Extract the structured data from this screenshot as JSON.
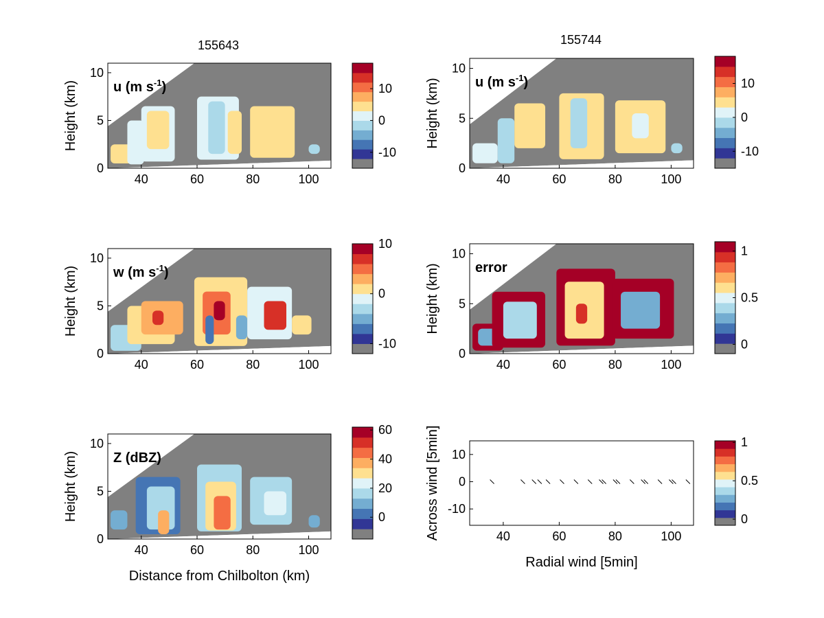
{
  "figure": {
    "left_title": "155643",
    "right_title": "155744"
  },
  "colormap": [
    "#808080",
    "#313695",
    "#4575b4",
    "#74add1",
    "#abd9e9",
    "#e0f3f8",
    "#fee090",
    "#fdae61",
    "#f46d43",
    "#d73027",
    "#a50026"
  ],
  "chart_data": [
    {
      "type": "heatmap",
      "panel": "u-left",
      "field_label": "u (m s",
      "field_sup": "-1",
      "ylabel": "Height (km)",
      "xlabel": "",
      "x_ticks": [
        40,
        60,
        80,
        100
      ],
      "y_ticks": [
        0,
        5,
        10
      ],
      "xlim": [
        28,
        108
      ],
      "ylim": [
        0,
        11
      ],
      "colorbar": {
        "ticks": [
          "10",
          "0",
          "-10"
        ],
        "range": [
          -15,
          18
        ]
      },
      "cells": [
        {
          "x": [
            29,
            38
          ],
          "y": [
            0.5,
            2.5
          ],
          "v": 6
        },
        {
          "x": [
            35,
            41
          ],
          "y": [
            0.4,
            5
          ],
          "v": 5
        },
        {
          "x": [
            40,
            52
          ],
          "y": [
            0.7,
            6.5
          ],
          "v": 5
        },
        {
          "x": [
            42,
            50
          ],
          "y": [
            2,
            6
          ],
          "v": 6
        },
        {
          "x": [
            60,
            75
          ],
          "y": [
            0.9,
            7.5
          ],
          "v": 5
        },
        {
          "x": [
            64,
            70
          ],
          "y": [
            1.5,
            7
          ],
          "v": 4
        },
        {
          "x": [
            71,
            76
          ],
          "y": [
            1.5,
            6
          ],
          "v": 6
        },
        {
          "x": [
            79,
            95
          ],
          "y": [
            1.1,
            6.5
          ],
          "v": 6
        },
        {
          "x": [
            86,
            94
          ],
          "y": [
            3,
            6
          ],
          "v": 6
        },
        {
          "x": [
            100,
            104
          ],
          "y": [
            1.5,
            2.5
          ],
          "v": 4
        }
      ]
    },
    {
      "type": "heatmap",
      "panel": "w-left",
      "field_label": "w (m s",
      "field_sup": "-1",
      "ylabel": "Height (km)",
      "xlabel": "",
      "x_ticks": [
        40,
        60,
        80,
        100
      ],
      "y_ticks": [
        0,
        5,
        10
      ],
      "xlim": [
        28,
        108
      ],
      "ylim": [
        0,
        11
      ],
      "colorbar": {
        "ticks": [
          "10",
          "0",
          "-10"
        ],
        "range": [
          -12,
          10
        ]
      },
      "cells": [
        {
          "x": [
            29,
            40
          ],
          "y": [
            0.3,
            3
          ],
          "v": 4
        },
        {
          "x": [
            35,
            52
          ],
          "y": [
            1,
            5
          ],
          "v": 6
        },
        {
          "x": [
            40,
            55
          ],
          "y": [
            2,
            5.5
          ],
          "v": 7
        },
        {
          "x": [
            44,
            48
          ],
          "y": [
            3,
            4.5
          ],
          "v": 9
        },
        {
          "x": [
            59,
            78
          ],
          "y": [
            0.8,
            8
          ],
          "v": 6
        },
        {
          "x": [
            62,
            72
          ],
          "y": [
            2,
            6.5
          ],
          "v": 8
        },
        {
          "x": [
            66,
            70
          ],
          "y": [
            3.5,
            5.5
          ],
          "v": 10
        },
        {
          "x": [
            63,
            66
          ],
          "y": [
            1,
            4
          ],
          "v": 2
        },
        {
          "x": [
            74,
            78
          ],
          "y": [
            1.5,
            4
          ],
          "v": 3
        },
        {
          "x": [
            78,
            94
          ],
          "y": [
            1.5,
            7
          ],
          "v": 5
        },
        {
          "x": [
            84,
            92
          ],
          "y": [
            2.5,
            5.5
          ],
          "v": 9
        },
        {
          "x": [
            94,
            101
          ],
          "y": [
            2,
            4
          ],
          "v": 6
        }
      ]
    },
    {
      "type": "heatmap",
      "panel": "Z-left",
      "field_label": "Z (dBZ)",
      "field_sup": "",
      "ylabel": "Height (km)",
      "xlabel": "Distance from Chilbolton (km)",
      "x_ticks": [
        40,
        60,
        80,
        100
      ],
      "y_ticks": [
        0,
        5,
        10
      ],
      "xlim": [
        28,
        108
      ],
      "ylim": [
        0,
        11
      ],
      "colorbar": {
        "ticks": [
          "60",
          "40",
          "20",
          "0"
        ],
        "range": [
          -15,
          62
        ]
      },
      "cells": [
        {
          "x": [
            29,
            35
          ],
          "y": [
            1,
            3
          ],
          "v": 3
        },
        {
          "x": [
            38,
            54
          ],
          "y": [
            0.5,
            6.5
          ],
          "v": 2
        },
        {
          "x": [
            42,
            52
          ],
          "y": [
            1,
            5.5
          ],
          "v": 4
        },
        {
          "x": [
            46,
            50
          ],
          "y": [
            0.5,
            3
          ],
          "v": 7
        },
        {
          "x": [
            60,
            76
          ],
          "y": [
            0.8,
            7.8
          ],
          "v": 4
        },
        {
          "x": [
            63,
            74
          ],
          "y": [
            0.9,
            6
          ],
          "v": 6
        },
        {
          "x": [
            66,
            72
          ],
          "y": [
            1,
            4.5
          ],
          "v": 8
        },
        {
          "x": [
            79,
            94
          ],
          "y": [
            1.5,
            6.5
          ],
          "v": 4
        },
        {
          "x": [
            84,
            92
          ],
          "y": [
            2.5,
            5
          ],
          "v": 5
        },
        {
          "x": [
            100,
            104
          ],
          "y": [
            1.2,
            2.5
          ],
          "v": 3
        }
      ]
    },
    {
      "type": "heatmap",
      "panel": "u-right",
      "field_label": "u (m s",
      "field_sup": "-1",
      "ylabel": "Height (km)",
      "xlabel": "",
      "x_ticks": [
        40,
        60,
        80,
        100
      ],
      "y_ticks": [
        0,
        5,
        10
      ],
      "xlim": [
        28,
        108
      ],
      "ylim": [
        0,
        11
      ],
      "colorbar": {
        "ticks": [
          "10",
          "0",
          "-10"
        ],
        "range": [
          -15,
          18
        ]
      },
      "cells": [
        {
          "x": [
            29,
            38
          ],
          "y": [
            0.5,
            2.5
          ],
          "v": 5
        },
        {
          "x": [
            38,
            44
          ],
          "y": [
            0.5,
            5
          ],
          "v": 4
        },
        {
          "x": [
            44,
            55
          ],
          "y": [
            2,
            6.5
          ],
          "v": 6
        },
        {
          "x": [
            60,
            76
          ],
          "y": [
            0.9,
            7.5
          ],
          "v": 6
        },
        {
          "x": [
            64,
            70
          ],
          "y": [
            2,
            7
          ],
          "v": 4
        },
        {
          "x": [
            80,
            98
          ],
          "y": [
            1.5,
            6.8
          ],
          "v": 6
        },
        {
          "x": [
            86,
            92
          ],
          "y": [
            3,
            5.5
          ],
          "v": 5
        },
        {
          "x": [
            100,
            104
          ],
          "y": [
            1.5,
            2.5
          ],
          "v": 4
        }
      ]
    },
    {
      "type": "heatmap",
      "panel": "error-right",
      "field_label": "error",
      "field_sup": "",
      "ylabel": "Height (km)",
      "xlabel": "",
      "x_ticks": [
        40,
        60,
        80,
        100
      ],
      "y_ticks": [
        0,
        5,
        10
      ],
      "xlim": [
        28,
        108
      ],
      "ylim": [
        0,
        11
      ],
      "colorbar": {
        "ticks": [
          "1",
          "0.5",
          "0"
        ],
        "range": [
          -0.1,
          1.1
        ]
      },
      "cells": [
        {
          "x": [
            29,
            40
          ],
          "y": [
            0.3,
            3
          ],
          "v": 10
        },
        {
          "x": [
            31,
            38
          ],
          "y": [
            0.8,
            2.5
          ],
          "v": 3
        },
        {
          "x": [
            36,
            55
          ],
          "y": [
            0.6,
            6.2
          ],
          "v": 10
        },
        {
          "x": [
            40,
            52
          ],
          "y": [
            1.5,
            5.2
          ],
          "v": 4
        },
        {
          "x": [
            59,
            80
          ],
          "y": [
            0.8,
            8.5
          ],
          "v": 10
        },
        {
          "x": [
            62,
            76
          ],
          "y": [
            1.5,
            7.2
          ],
          "v": 6
        },
        {
          "x": [
            66,
            70
          ],
          "y": [
            3,
            5
          ],
          "v": 9
        },
        {
          "x": [
            79,
            101
          ],
          "y": [
            1.5,
            7.5
          ],
          "v": 10
        },
        {
          "x": [
            82,
            96
          ],
          "y": [
            2.5,
            6.2
          ],
          "v": 3
        }
      ]
    },
    {
      "type": "scatter",
      "panel": "quiver-right",
      "ylabel": "Across wind [5min]",
      "xlabel": "Radial wind [5min]",
      "x_ticks": [
        40,
        60,
        80,
        100
      ],
      "y_ticks": [
        10,
        0,
        -10
      ],
      "xlim": [
        28,
        108
      ],
      "ylim": [
        -16,
        15
      ],
      "colorbar": {
        "ticks": [
          "1",
          "0.5",
          "0"
        ],
        "range": [
          -0.08,
          1.02
        ]
      },
      "arrows": [
        {
          "x": 36,
          "y": 0
        },
        {
          "x": 47,
          "y": 0
        },
        {
          "x": 51,
          "y": 0
        },
        {
          "x": 53,
          "y": 0
        },
        {
          "x": 56,
          "y": 0
        },
        {
          "x": 61,
          "y": 0
        },
        {
          "x": 66,
          "y": 0
        },
        {
          "x": 71,
          "y": 0
        },
        {
          "x": 75,
          "y": 0
        },
        {
          "x": 76,
          "y": 0
        },
        {
          "x": 80,
          "y": 0
        },
        {
          "x": 81,
          "y": 0
        },
        {
          "x": 86,
          "y": 0
        },
        {
          "x": 90,
          "y": 0
        },
        {
          "x": 91,
          "y": 0
        },
        {
          "x": 96,
          "y": 0
        },
        {
          "x": 100,
          "y": 0
        },
        {
          "x": 101,
          "y": 0
        },
        {
          "x": 106,
          "y": 0
        }
      ]
    }
  ]
}
